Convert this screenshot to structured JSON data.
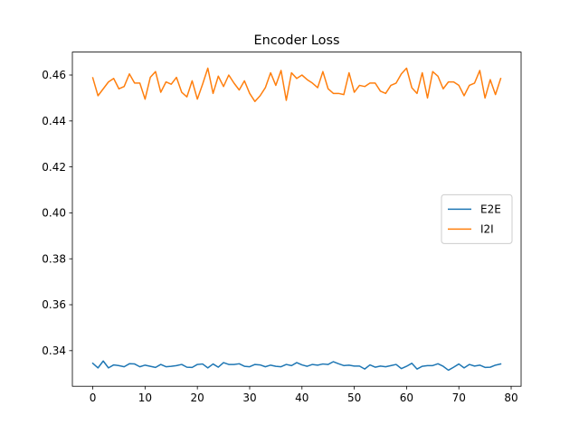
{
  "chart_data": {
    "type": "line",
    "title": "Encoder Loss",
    "xlabel": "",
    "ylabel": "",
    "xlim": [
      -3.9,
      81.9
    ],
    "ylim": [
      0.3245,
      0.47
    ],
    "xticks": [
      0,
      10,
      20,
      30,
      40,
      50,
      60,
      70,
      80
    ],
    "yticks": [
      0.34,
      0.36,
      0.38,
      0.4,
      0.42,
      0.44,
      0.46
    ],
    "ytick_labels": [
      "0.34",
      "0.36",
      "0.38",
      "0.40",
      "0.42",
      "0.44",
      "0.46"
    ],
    "grid": false,
    "legend_position": "center right",
    "series": [
      {
        "name": "E2E",
        "color": "#1f77b4",
        "values": [
          0.3345,
          0.3325,
          0.3355,
          0.3325,
          0.3338,
          0.3335,
          0.333,
          0.3343,
          0.3342,
          0.333,
          0.3337,
          0.3332,
          0.3327,
          0.334,
          0.333,
          0.3332,
          0.3335,
          0.334,
          0.3328,
          0.3327,
          0.334,
          0.3342,
          0.3325,
          0.3342,
          0.3328,
          0.3348,
          0.334,
          0.334,
          0.3343,
          0.3332,
          0.333,
          0.334,
          0.3338,
          0.333,
          0.3337,
          0.3332,
          0.333,
          0.334,
          0.3335,
          0.3348,
          0.3338,
          0.3332,
          0.334,
          0.3337,
          0.3342,
          0.334,
          0.3352,
          0.3343,
          0.3335,
          0.3337,
          0.3333,
          0.3333,
          0.332,
          0.3338,
          0.3328,
          0.3333,
          0.333,
          0.3335,
          0.334,
          0.3322,
          0.3332,
          0.3345,
          0.332,
          0.3332,
          0.3335,
          0.3335,
          0.3343,
          0.3332,
          0.3315,
          0.3328,
          0.3342,
          0.3325,
          0.334,
          0.3333,
          0.3337,
          0.3327,
          0.3328,
          0.3337,
          0.3342
        ]
      },
      {
        "name": "I2I",
        "color": "#ff7f0e",
        "values": [
          0.4588,
          0.451,
          0.454,
          0.457,
          0.4585,
          0.454,
          0.455,
          0.4605,
          0.4565,
          0.4565,
          0.4495,
          0.459,
          0.4615,
          0.4525,
          0.457,
          0.456,
          0.459,
          0.4525,
          0.4505,
          0.4575,
          0.4495,
          0.456,
          0.463,
          0.452,
          0.4595,
          0.455,
          0.46,
          0.4565,
          0.4535,
          0.4575,
          0.452,
          0.4485,
          0.451,
          0.4545,
          0.461,
          0.4555,
          0.462,
          0.449,
          0.461,
          0.4585,
          0.46,
          0.458,
          0.4565,
          0.4545,
          0.4615,
          0.454,
          0.452,
          0.452,
          0.4515,
          0.461,
          0.4525,
          0.4555,
          0.455,
          0.4565,
          0.4565,
          0.453,
          0.452,
          0.4555,
          0.4565,
          0.4605,
          0.463,
          0.4545,
          0.452,
          0.461,
          0.45,
          0.4615,
          0.4595,
          0.454,
          0.457,
          0.457,
          0.4555,
          0.451,
          0.4555,
          0.4565,
          0.462,
          0.45,
          0.458,
          0.4515,
          0.4585
        ]
      }
    ]
  }
}
